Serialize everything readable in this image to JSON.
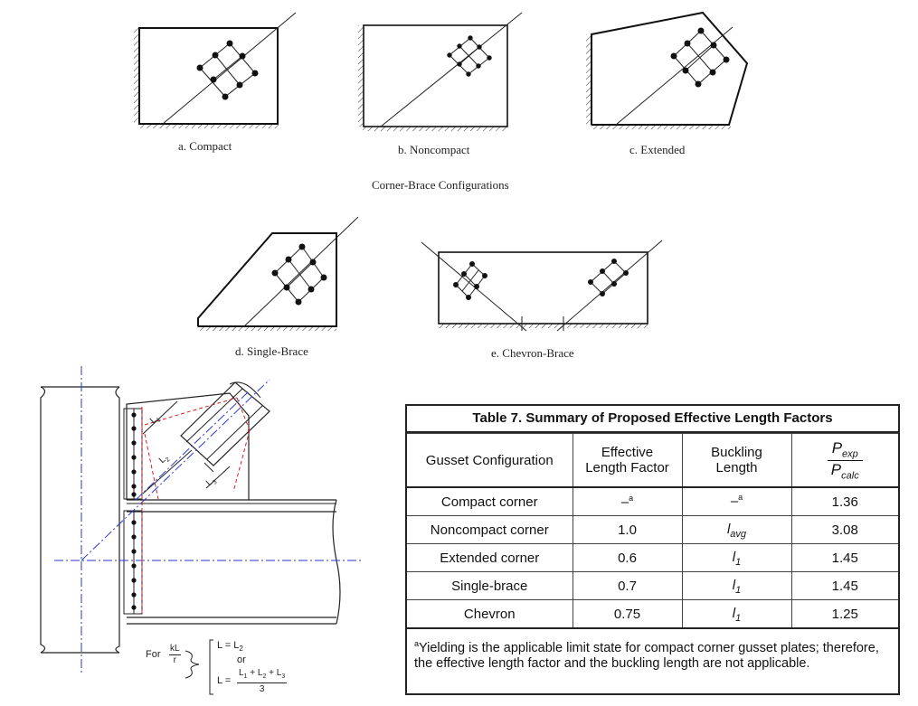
{
  "captions": {
    "a": "a. Compact",
    "b": "b. Noncompact",
    "c": "c. Extended",
    "d": "d. Single-Brace",
    "e": "e. Chevron-Brace",
    "group": "Corner-Brace Configurations"
  },
  "detail": {
    "L1": "L",
    "L1_sub": "1",
    "L2": "L",
    "L2_sub": "2",
    "L3": "L",
    "L3_sub": "3",
    "for_label": "For",
    "kl_num": "kL",
    "kl_den": "r",
    "eq1": "L = L",
    "eq1_sub": "2",
    "or": "or",
    "eq2_lhs": "L =",
    "eq2_num": "L1 + L2 + L3",
    "eq2_den": "3"
  },
  "table": {
    "title": "Table 7. Summary of Proposed Effective Length Factors",
    "headers": {
      "config": "Gusset Configuration",
      "factor": "Effective Length Factor",
      "buckling": "Buckling Length",
      "ratio_num": "P",
      "ratio_num_sub": "exp",
      "ratio_den": "P",
      "ratio_den_sub": "calc"
    },
    "rows": [
      {
        "config": "Compact corner",
        "factor": "–",
        "factor_sup": "a",
        "buckling": "–",
        "buckling_sup": "a",
        "buckling_sub": "",
        "ratio": "1.36"
      },
      {
        "config": "Noncompact corner",
        "factor": "1.0",
        "factor_sup": "",
        "buckling": "l",
        "buckling_sup": "",
        "buckling_sub": "avg",
        "ratio": "3.08"
      },
      {
        "config": "Extended corner",
        "factor": "0.6",
        "factor_sup": "",
        "buckling": "l",
        "buckling_sup": "",
        "buckling_sub": "1",
        "ratio": "1.45"
      },
      {
        "config": "Single-brace",
        "factor": "0.7",
        "factor_sup": "",
        "buckling": "l",
        "buckling_sup": "",
        "buckling_sub": "1",
        "ratio": "1.45"
      },
      {
        "config": "Chevron",
        "factor": "0.75",
        "factor_sup": "",
        "buckling": "l",
        "buckling_sup": "",
        "buckling_sub": "1",
        "ratio": "1.25"
      }
    ],
    "note_sup": "a",
    "note": "Yielding is the applicable limit state for compact corner gusset plates; therefore, the effective length factor and the buckling length are not applicable."
  }
}
